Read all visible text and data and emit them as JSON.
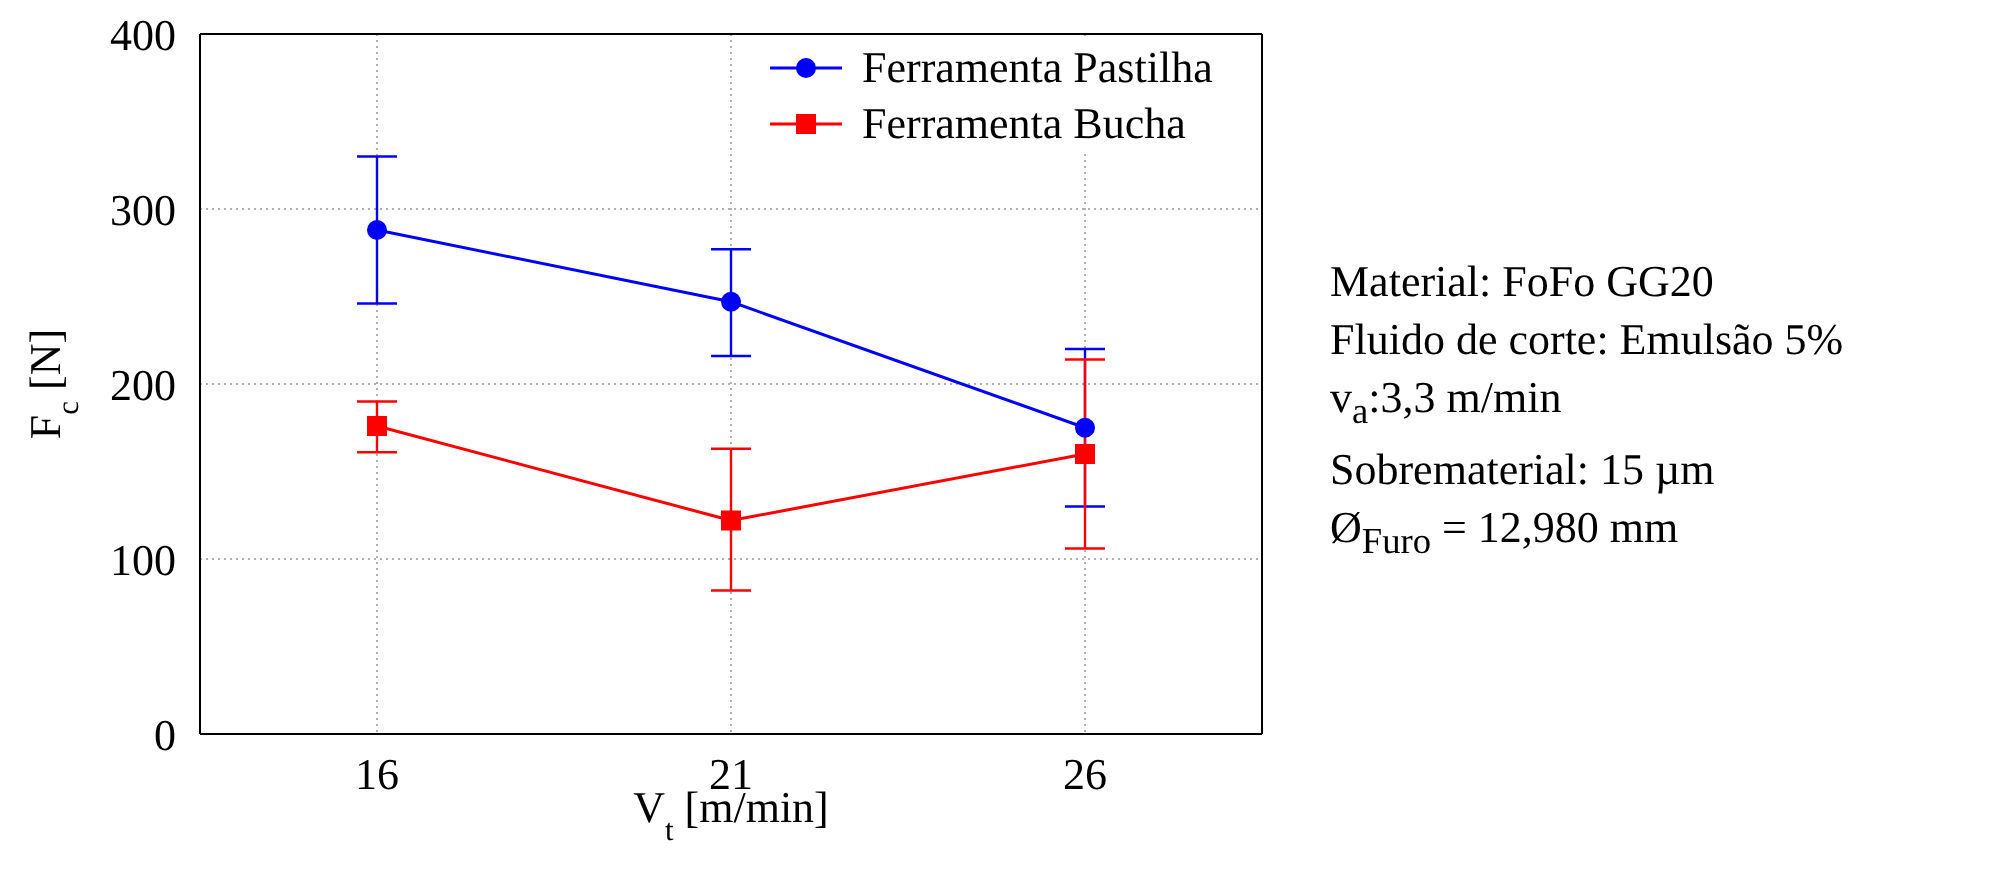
{
  "chart_data": {
    "type": "line",
    "xlabel": "V$_{t}$ [m/min]",
    "ylabel": "F$_{c}$ [N]",
    "x": [
      16,
      21,
      26
    ],
    "xlim": [
      13.5,
      28.5
    ],
    "xticks": [
      16,
      21,
      26
    ],
    "ylim": [
      0,
      400
    ],
    "yticks": [
      0,
      100,
      200,
      300,
      400
    ],
    "grid": true,
    "legend": "top right",
    "line_style": "solid",
    "series": [
      {
        "name": "Ferramenta Pastilha",
        "color": "#0000ff",
        "marker": "circle",
        "values": [
          288,
          247,
          175
        ],
        "errors": [
          [
            246,
            330
          ],
          [
            216,
            277
          ],
          [
            130,
            220
          ]
        ]
      },
      {
        "name": "Ferramenta Bucha",
        "color": "#ff0000",
        "marker": "square",
        "values": [
          176,
          122,
          160
        ],
        "errors": [
          [
            161,
            190
          ],
          [
            82,
            163
          ],
          [
            106,
            214
          ]
        ]
      }
    ],
    "annotations": [
      "Material: FoFo GG20",
      "Fluido de corte: Emulsão 5%",
      "v$_{a}$:3,3 m/min",
      "Sobrematerial: 15 µm",
      "Ø$_{Furo}$ = 12,980 mm"
    ]
  }
}
